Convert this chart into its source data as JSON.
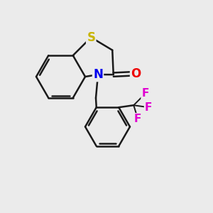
{
  "bg_color": "#ebebeb",
  "bond_color": "#1a1a1a",
  "bond_width": 1.8,
  "atom_colors": {
    "S": "#c8b400",
    "N": "#0000ee",
    "O": "#ee0000",
    "F": "#e000d0",
    "C": "#1a1a1a"
  },
  "font_size": 12,
  "font_size_small": 11
}
